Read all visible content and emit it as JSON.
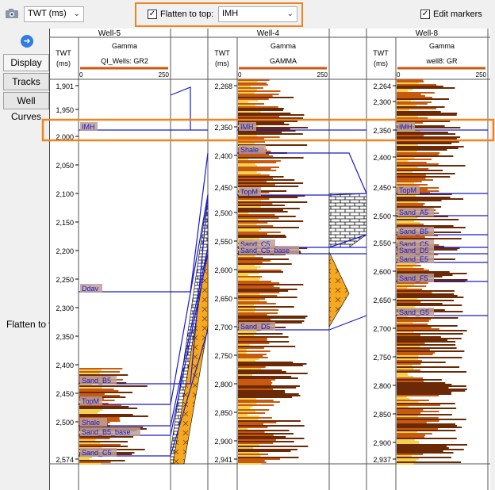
{
  "toolbar": {
    "camera_icon": "camera-icon",
    "twt_select": "TWT (ms)",
    "flatten_checked": true,
    "flatten_label": "Flatten to top:",
    "flatten_value": "IMH",
    "edit_checked": true,
    "edit_label": "Edit markers",
    "highlight_color": "#f0831e"
  },
  "sidebar": {
    "tabs": [
      "Display",
      "Tracks",
      "Well Curves"
    ],
    "note": "Flatten to well top"
  },
  "wells": [
    {
      "name": "Well-5",
      "axis_label": [
        "TWT",
        "(ms)"
      ],
      "curve_title": "Gamma",
      "curve_name": "QI_Wells: GR2",
      "scale_min": "0",
      "scale_max": "250",
      "ticks": [
        "1,901",
        "1,950",
        "2,000",
        "2,050",
        "2,100",
        "2,150",
        "2,200",
        "2,250",
        "2,300",
        "2,350",
        "2,400",
        "2,450",
        "2,500",
        "2,574"
      ],
      "tops": [
        "IMH",
        "Ddav",
        "Sand_B5",
        "TopM",
        "Shale",
        "Sand_B5_base",
        "Sand_C5"
      ]
    },
    {
      "name": "Well-4",
      "axis_label": [
        "TWT",
        "(ms)"
      ],
      "curve_title": "Gamma",
      "curve_name": "GAMMA",
      "scale_min": "0",
      "scale_max": "250",
      "ticks": [
        "2,268",
        "2,350",
        "2,400",
        "2,450",
        "2,500",
        "2,550",
        "2,600",
        "2,650",
        "2,700",
        "2,750",
        "2,800",
        "2,850",
        "2,900",
        "2,941"
      ],
      "tops": [
        "IMH",
        "Shale",
        "TopM",
        "Sand_C5",
        "Sand_C5_base",
        "Sand_D5"
      ]
    },
    {
      "name": "Well-8",
      "axis_label": [
        "TWT",
        "(ms)"
      ],
      "curve_title": "Gamma",
      "curve_name": "well8: GR",
      "scale_min": "0",
      "scale_max": "250",
      "ticks": [
        "2,264",
        "2,300",
        "2,350",
        "2,400",
        "2,450",
        "2,500",
        "2,550",
        "2,600",
        "2,650",
        "2,700",
        "2,750",
        "2,800",
        "2,850",
        "2,900",
        "2,937"
      ],
      "tops": [
        "IMH",
        "TopM",
        "Sand_A5",
        "Sand_B5",
        "Sand_C5",
        "Sand_D5",
        "Sand_E5",
        "Sand_F5",
        "Sand_G5"
      ]
    }
  ],
  "colors": {
    "marker_line": "#1a1ad0",
    "gamma_dark": "#6b2a05",
    "gamma_mid": "#c85a10",
    "gamma_light": "#f3d250",
    "sand_fill": "#f5a820"
  }
}
